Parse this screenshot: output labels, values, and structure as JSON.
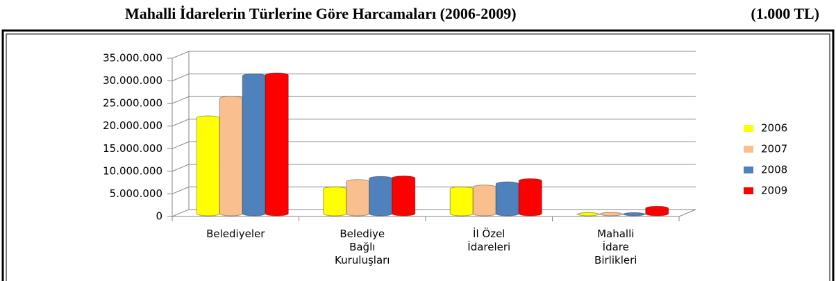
{
  "chart_data": {
    "type": "bar3d",
    "title": "Mahalli İdarelerin Türlerine Göre Harcamaları (2006-2009)",
    "subtitle": "(1.000 TL)",
    "categories": [
      "Belediyeler",
      "Belediye\nBağlı\nKuruluşları",
      "İl Özel\nİdareleri",
      "Mahalli\nİdare\nBirlikleri"
    ],
    "series": [
      {
        "name": "2006",
        "color": "#ffff00",
        "values": [
          21500000,
          5800000,
          5800000,
          100000
        ]
      },
      {
        "name": "2007",
        "color": "#fabf8f",
        "values": [
          25800000,
          7400000,
          6200000,
          150000
        ]
      },
      {
        "name": "2008",
        "color": "#4f81bd",
        "values": [
          30800000,
          8100000,
          6900000,
          100000
        ]
      },
      {
        "name": "2009",
        "color": "#ff0000",
        "values": [
          31000000,
          8200000,
          7600000,
          1500000
        ]
      }
    ],
    "ylim": [
      0,
      35000000
    ],
    "yticks": [
      0,
      {
        "value": 5000000,
        "label": "5.000.000"
      },
      {
        "value": 10000000,
        "label": "10.000.000"
      },
      {
        "value": 15000000,
        "label": "15.000.000"
      },
      {
        "value": 20000000,
        "label": "20.000.000"
      },
      {
        "value": 25000000,
        "label": "25.000.000"
      },
      {
        "value": 30000000,
        "label": "30.000.000"
      },
      {
        "value": 35000000,
        "label": "35.000.000"
      }
    ],
    "grid": true,
    "legend": "right"
  }
}
